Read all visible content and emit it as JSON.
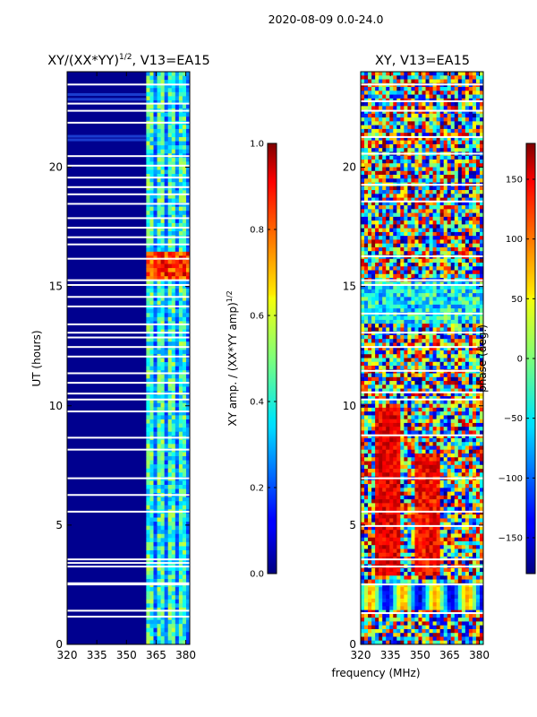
{
  "figure_title": "2020-08-09 0.0-24.0",
  "shared_xlabel": "frequency (MHz)",
  "chart_data": [
    {
      "type": "heatmap",
      "title_text": "XY/(XX*YY)",
      "title_sup": "1/2",
      "title_suffix": ", V13=EA15",
      "xlabel": "",
      "ylabel": "UT (hours)",
      "xlim": [
        320,
        382
      ],
      "ylim": [
        0,
        24
      ],
      "xticks": [
        320,
        335,
        350,
        365,
        380
      ],
      "yticks": [
        0,
        5,
        10,
        15,
        20
      ],
      "active_band_mhz": [
        [
          360,
          382
        ]
      ],
      "flagged_hours": [
        1.2,
        1.45,
        2.55,
        2.6,
        3.3,
        3.45,
        3.6,
        5.6,
        6.3,
        7.0,
        8.2,
        8.7,
        9.8,
        10.3,
        10.55,
        11.0,
        11.4,
        12.1,
        12.5,
        12.9,
        13.1,
        13.45,
        14.2,
        14.6,
        15.1,
        15.3,
        16.2,
        16.8,
        17.1,
        17.5,
        17.9,
        18.5,
        18.9,
        19.2,
        19.6,
        20.1,
        20.5,
        21.9,
        22.4,
        22.7,
        23.5
      ],
      "colorbar": {
        "label_text": "XY amp. / (XX*YY amp)",
        "label_sup": "1/2",
        "range": [
          0.0,
          1.0
        ],
        "ticks": [
          "0.0",
          "0.2",
          "0.4",
          "0.6",
          "0.8",
          "1.0"
        ],
        "colormap": "jet"
      }
    },
    {
      "type": "heatmap",
      "title_text": "XY, V13=EA15",
      "ylabel": "",
      "xlim": [
        320,
        382
      ],
      "ylim": [
        0,
        24
      ],
      "xticks": [
        320,
        335,
        350,
        365,
        380
      ],
      "yticks": [
        0,
        5,
        10,
        15,
        20
      ],
      "flagged_hours": [
        1.35,
        2.55,
        3.3,
        3.6,
        5.0,
        5.6,
        7.0,
        8.8,
        10.3,
        10.6,
        11.5,
        12.5,
        13.1,
        13.9,
        15.1,
        15.3,
        16.3,
        18.6,
        19.3,
        20.6,
        21.3,
        22.4,
        22.8,
        23.5
      ],
      "colorbar": {
        "label_text": "phase (deg.)",
        "range": [
          -180,
          180
        ],
        "ticks": [
          "−150",
          "−100",
          "−50",
          "0",
          "50",
          "100",
          "150"
        ],
        "tick_values": [
          -150,
          -100,
          -50,
          0,
          50,
          100,
          150
        ],
        "colormap": "jet"
      }
    }
  ]
}
